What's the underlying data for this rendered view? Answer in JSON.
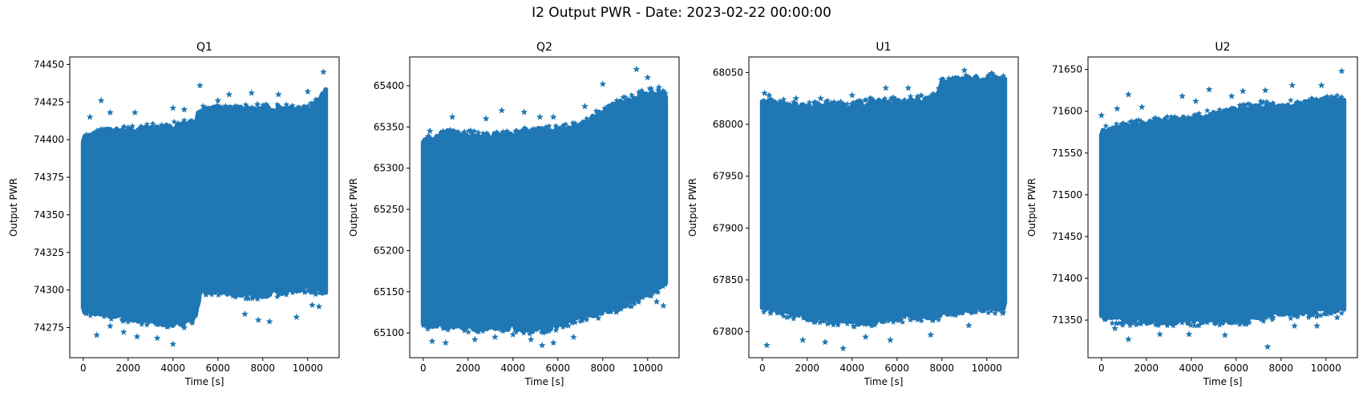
{
  "figure": {
    "suptitle": "I2 Output PWR - Date: 2023-02-22 00:00:00",
    "marker_color": "#1f77b4",
    "marker": "star"
  },
  "chart_data": [
    {
      "type": "scatter",
      "title": "Q1",
      "xlabel": "Time [s]",
      "ylabel": "Output PWR",
      "xlim": [
        -600,
        11400
      ],
      "ylim": [
        74255,
        74455
      ],
      "xticks": [
        0,
        2000,
        4000,
        6000,
        8000,
        10000
      ],
      "yticks": [
        74275,
        74300,
        74325,
        74350,
        74375,
        74400,
        74425,
        74450
      ],
      "x_range": [
        0,
        10800
      ],
      "band": {
        "x": [
          0,
          1000,
          2000,
          3000,
          4000,
          5000,
          5200,
          6000,
          7000,
          8000,
          9000,
          10000,
          10500,
          10800
        ],
        "lower": [
          74287,
          74285,
          74282,
          74280,
          74278,
          74282,
          74300,
          74300,
          74298,
          74297,
          74300,
          74302,
          74300,
          74300
        ],
        "upper": [
          74400,
          74405,
          74405,
          74407,
          74408,
          74410,
          74420,
          74420,
          74420,
          74420,
          74420,
          74420,
          74425,
          74432
        ]
      },
      "outliers": [
        [
          800,
          74426
        ],
        [
          300,
          74415
        ],
        [
          1200,
          74418
        ],
        [
          2300,
          74418
        ],
        [
          4000,
          74421
        ],
        [
          4500,
          74420
        ],
        [
          5200,
          74436
        ],
        [
          6000,
          74426
        ],
        [
          6500,
          74430
        ],
        [
          7500,
          74431
        ],
        [
          8700,
          74430
        ],
        [
          10000,
          74432
        ],
        [
          10700,
          74445
        ],
        [
          600,
          74270
        ],
        [
          1200,
          74276
        ],
        [
          1800,
          74272
        ],
        [
          2400,
          74269
        ],
        [
          3300,
          74268
        ],
        [
          4000,
          74264
        ],
        [
          4500,
          74275
        ],
        [
          5000,
          74287
        ],
        [
          7200,
          74284
        ],
        [
          7800,
          74280
        ],
        [
          8300,
          74279
        ],
        [
          9500,
          74282
        ],
        [
          10200,
          74290
        ],
        [
          10500,
          74289
        ]
      ]
    },
    {
      "type": "scatter",
      "title": "Q2",
      "xlabel": "Time [s]",
      "ylabel": "Output PWR",
      "xlim": [
        -600,
        11400
      ],
      "ylim": [
        65070,
        65435
      ],
      "xticks": [
        0,
        2000,
        4000,
        6000,
        8000,
        10000
      ],
      "yticks": [
        65100,
        65150,
        65200,
        65250,
        65300,
        65350,
        65400
      ],
      "x_range": [
        0,
        10800
      ],
      "band": {
        "x": [
          0,
          1000,
          2000,
          3000,
          4000,
          5000,
          6000,
          7000,
          8000,
          9000,
          10000,
          10800
        ],
        "lower": [
          65110,
          65110,
          65108,
          65108,
          65108,
          65105,
          65110,
          65120,
          65128,
          65135,
          65150,
          65160
        ],
        "upper": [
          65330,
          65342,
          65340,
          65338,
          65340,
          65345,
          65345,
          65350,
          65368,
          65380,
          65390,
          65388
        ]
      },
      "outliers": [
        [
          300,
          65345
        ],
        [
          1300,
          65362
        ],
        [
          2800,
          65360
        ],
        [
          3500,
          65370
        ],
        [
          4500,
          65368
        ],
        [
          5200,
          65362
        ],
        [
          5800,
          65362
        ],
        [
          7200,
          65375
        ],
        [
          8000,
          65402
        ],
        [
          9500,
          65420
        ],
        [
          10000,
          65410
        ],
        [
          10500,
          65398
        ],
        [
          400,
          65090
        ],
        [
          1000,
          65088
        ],
        [
          2300,
          65092
        ],
        [
          3200,
          65095
        ],
        [
          4000,
          65098
        ],
        [
          4800,
          65092
        ],
        [
          5300,
          65085
        ],
        [
          5800,
          65088
        ],
        [
          6700,
          65095
        ],
        [
          7800,
          65118
        ],
        [
          10400,
          65138
        ],
        [
          10700,
          65133
        ]
      ]
    },
    {
      "type": "scatter",
      "title": "U1",
      "xlabel": "Time [s]",
      "ylabel": "Output PWR",
      "xlim": [
        -600,
        11400
      ],
      "ylim": [
        67775,
        68065
      ],
      "xticks": [
        0,
        2000,
        4000,
        6000,
        8000,
        10000
      ],
      "yticks": [
        67800,
        67850,
        67900,
        67950,
        68000,
        68050
      ],
      "x_range": [
        0,
        10800
      ],
      "band": {
        "x": [
          0,
          1000,
          2000,
          3000,
          4000,
          5000,
          6000,
          7000,
          7800,
          8000,
          9000,
          10000,
          10800
        ],
        "lower": [
          67825,
          67820,
          67815,
          67813,
          67810,
          67812,
          67815,
          67816,
          67816,
          67820,
          67822,
          67823,
          67825
        ],
        "upper": [
          68020,
          68018,
          68016,
          68017,
          68018,
          68020,
          68020,
          68022,
          68025,
          68040,
          68042,
          68043,
          68043
        ]
      },
      "outliers": [
        [
          100,
          68030
        ],
        [
          300,
          68028
        ],
        [
          1500,
          68025
        ],
        [
          2600,
          68025
        ],
        [
          4000,
          68028
        ],
        [
          5500,
          68035
        ],
        [
          6500,
          68035
        ],
        [
          9000,
          68052
        ],
        [
          10200,
          68049
        ],
        [
          200,
          67787
        ],
        [
          1800,
          67792
        ],
        [
          2800,
          67790
        ],
        [
          3600,
          67784
        ],
        [
          4600,
          67795
        ],
        [
          5700,
          67792
        ],
        [
          7500,
          67797
        ],
        [
          9200,
          67806
        ],
        [
          10700,
          67818
        ]
      ]
    },
    {
      "type": "scatter",
      "title": "U2",
      "xlabel": "Time [s]",
      "ylabel": "Output PWR",
      "xlim": [
        -600,
        11400
      ],
      "ylim": [
        71305,
        71665
      ],
      "xticks": [
        0,
        2000,
        4000,
        6000,
        8000,
        10000
      ],
      "yticks": [
        71350,
        71400,
        71450,
        71500,
        71550,
        71600,
        71650
      ],
      "x_range": [
        0,
        10800
      ],
      "band": {
        "x": [
          0,
          1000,
          2000,
          3000,
          4000,
          5000,
          6000,
          7000,
          8000,
          9000,
          10000,
          10800
        ],
        "lower": [
          71355,
          71350,
          71350,
          71350,
          71350,
          71350,
          71350,
          71355,
          71358,
          71360,
          71362,
          71365
        ],
        "upper": [
          71575,
          71580,
          71585,
          71588,
          71590,
          71595,
          71600,
          71605,
          71605,
          71608,
          71612,
          71615
        ]
      },
      "outliers": [
        [
          0,
          71595
        ],
        [
          700,
          71603
        ],
        [
          1200,
          71620
        ],
        [
          1800,
          71605
        ],
        [
          3600,
          71618
        ],
        [
          4200,
          71612
        ],
        [
          4800,
          71626
        ],
        [
          5800,
          71618
        ],
        [
          6300,
          71624
        ],
        [
          7300,
          71625
        ],
        [
          8500,
          71631
        ],
        [
          9800,
          71631
        ],
        [
          10700,
          71648
        ],
        [
          600,
          71340
        ],
        [
          1200,
          71327
        ],
        [
          2600,
          71333
        ],
        [
          3900,
          71333
        ],
        [
          5500,
          71332
        ],
        [
          7400,
          71318
        ],
        [
          8600,
          71343
        ],
        [
          9600,
          71343
        ],
        [
          10500,
          71353
        ]
      ]
    }
  ]
}
